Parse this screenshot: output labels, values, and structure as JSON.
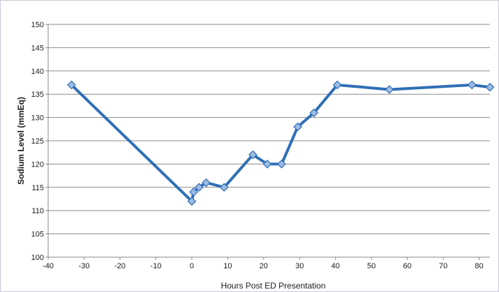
{
  "chart_data": {
    "type": "line",
    "xlabel": "Hours Post ED Presentation",
    "ylabel": "Sodium Level (mmEq)",
    "xlim": [
      -40,
      83
    ],
    "ylim": [
      100,
      150
    ],
    "x_ticks": [
      -40,
      -30,
      -20,
      -10,
      0,
      10,
      20,
      30,
      40,
      50,
      60,
      70,
      80
    ],
    "y_ticks": [
      100,
      105,
      110,
      115,
      120,
      125,
      130,
      135,
      140,
      145,
      150
    ],
    "grid": "horizontal",
    "legend": "none",
    "series": [
      {
        "color": "#2f6fb6",
        "marker_color": "#9dbbe3",
        "points": [
          {
            "x": -33.5,
            "y": 137
          },
          {
            "x": 0,
            "y": 112
          },
          {
            "x": 0.5,
            "y": 114
          },
          {
            "x": 2,
            "y": 115
          },
          {
            "x": 4,
            "y": 116
          },
          {
            "x": 9,
            "y": 115
          },
          {
            "x": 17,
            "y": 122
          },
          {
            "x": 21,
            "y": 120
          },
          {
            "x": 25,
            "y": 120
          },
          {
            "x": 29.5,
            "y": 128
          },
          {
            "x": 34,
            "y": 131
          },
          {
            "x": 40.5,
            "y": 137
          },
          {
            "x": 55,
            "y": 136
          },
          {
            "x": 78,
            "y": 137
          },
          {
            "x": 83,
            "y": 136.5
          }
        ]
      }
    ]
  }
}
